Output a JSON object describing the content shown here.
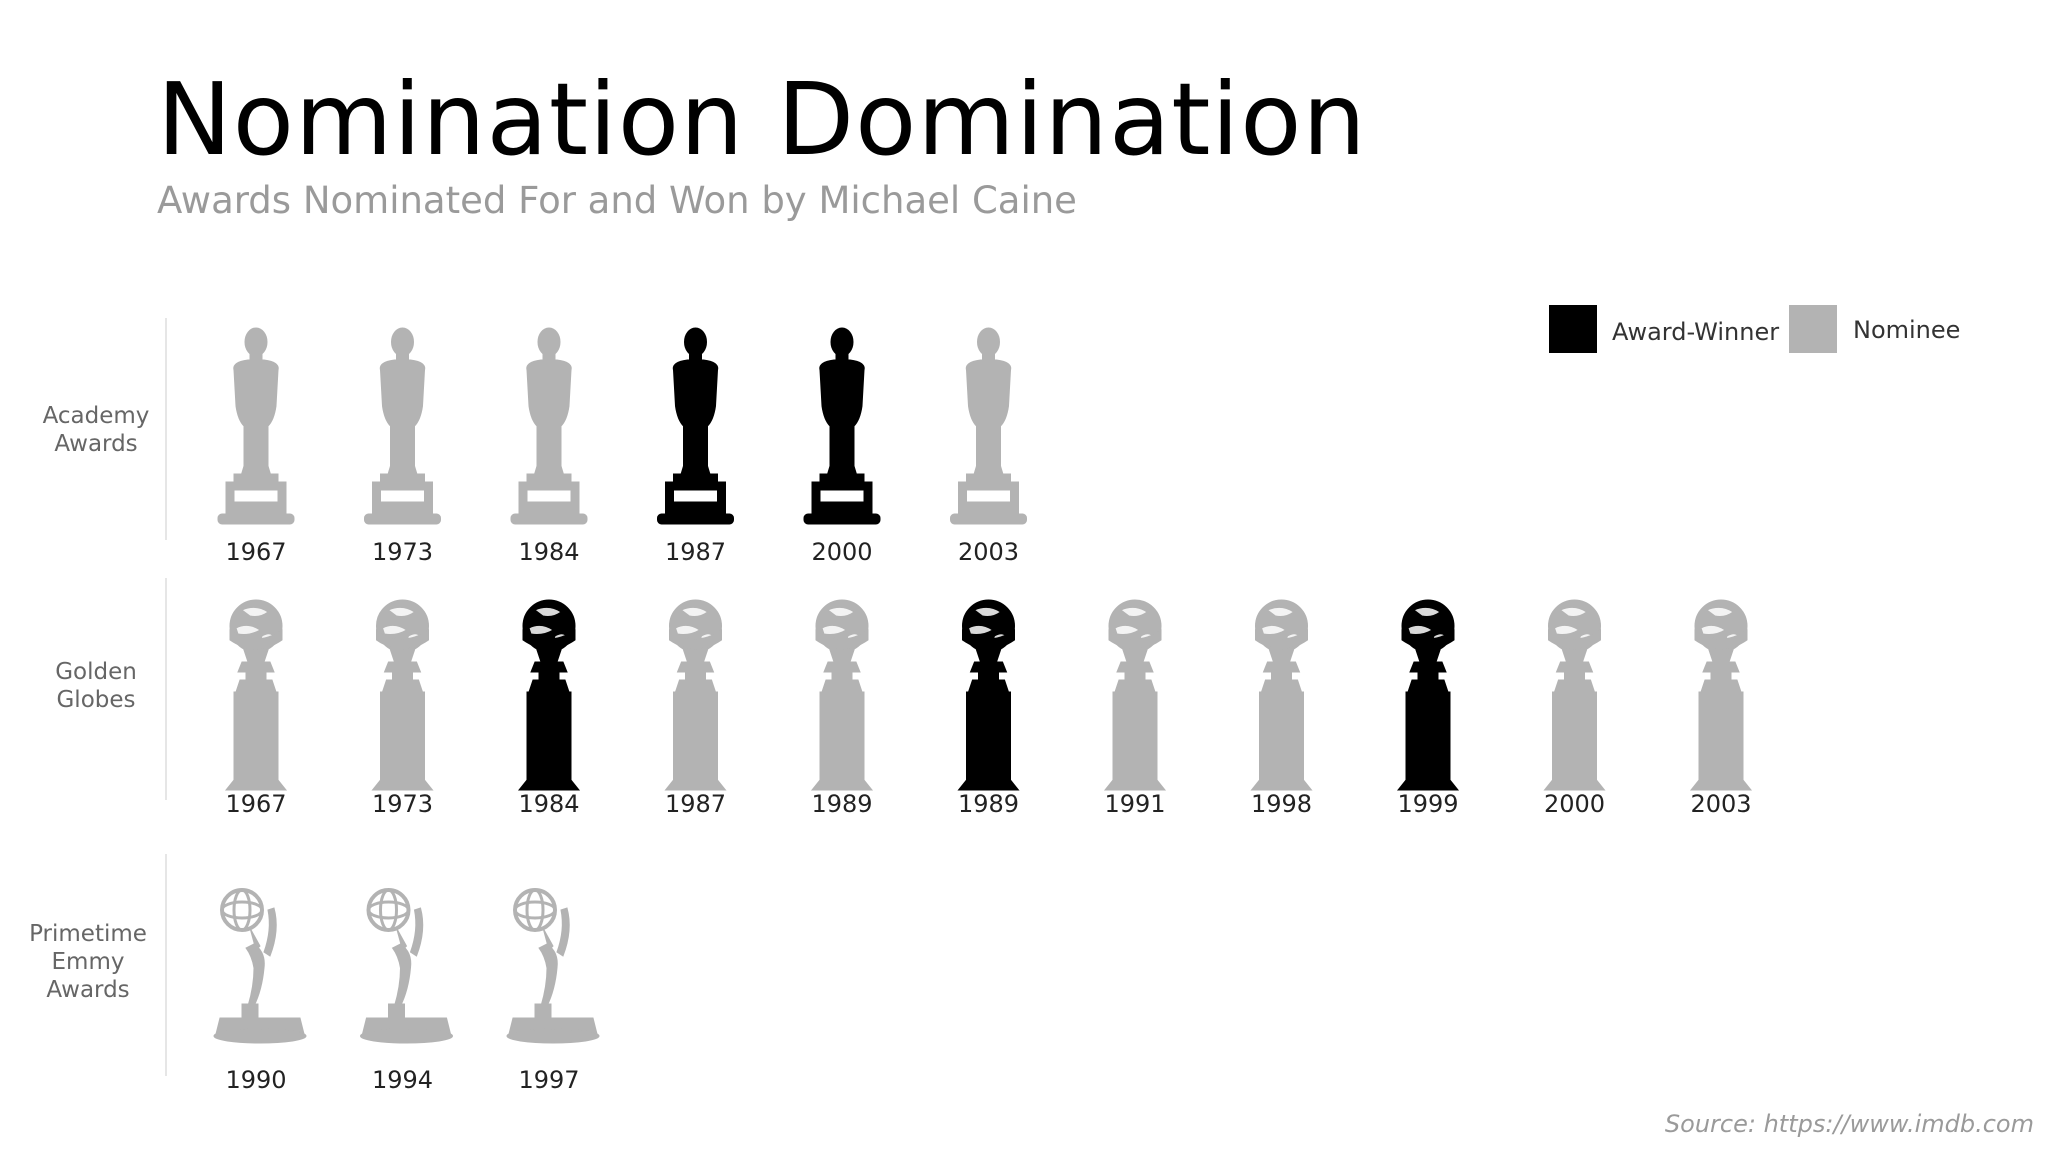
{
  "chart_data": {
    "type": "pictogram",
    "title": "Nomination Domination",
    "subtitle": "Awards Nominated For and Won by Michael Caine",
    "legend": {
      "placement": "top-right",
      "entries": [
        {
          "label": "Award-Winner",
          "color": "#000000"
        },
        {
          "label": "Nominee",
          "color": "#b3b3b3"
        }
      ]
    },
    "rows": [
      {
        "label": "Academy\nAwards",
        "icon": "oscar-statuette-icon",
        "items": [
          {
            "year": "1967",
            "won": false
          },
          {
            "year": "1973",
            "won": false
          },
          {
            "year": "1984",
            "won": false
          },
          {
            "year": "1987",
            "won": true
          },
          {
            "year": "2000",
            "won": true
          },
          {
            "year": "2003",
            "won": false
          }
        ]
      },
      {
        "label": "Golden\nGlobes",
        "icon": "golden-globe-icon",
        "items": [
          {
            "year": "1967",
            "won": false
          },
          {
            "year": "1973",
            "won": false
          },
          {
            "year": "1984",
            "won": true
          },
          {
            "year": "1987",
            "won": false
          },
          {
            "year": "1989",
            "won": false
          },
          {
            "year": "1989",
            "won": true
          },
          {
            "year": "1991",
            "won": false
          },
          {
            "year": "1998",
            "won": false
          },
          {
            "year": "1999",
            "won": true
          },
          {
            "year": "2000",
            "won": false
          },
          {
            "year": "2003",
            "won": false
          }
        ]
      },
      {
        "label": "Primetime\nEmmy\nAwards",
        "icon": "emmy-statuette-icon",
        "items": [
          {
            "year": "1990",
            "won": false
          },
          {
            "year": "1994",
            "won": false
          },
          {
            "year": "1997",
            "won": false
          }
        ]
      }
    ],
    "source": "Source: https://www.imdb.com"
  }
}
